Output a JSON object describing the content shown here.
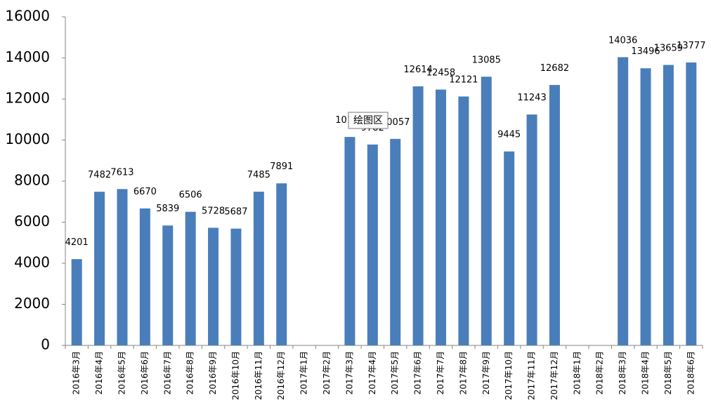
{
  "chart_data": {
    "type": "bar",
    "categories": [
      "2016年3月",
      "2016年4月",
      "2016年5月",
      "2016年6月",
      "2016年7月",
      "2016年8月",
      "2016年9月",
      "2016年10月",
      "2016年11月",
      "2016年12月",
      "2017年1月",
      "2017年2月",
      "2017年3月",
      "2017年4月",
      "2017年5月",
      "2017年6月",
      "2017年7月",
      "2017年8月",
      "2017年9月",
      "2017年10月",
      "2017年11月",
      "2017年12月",
      "2018年1月",
      "2018年2月",
      "2018年3月",
      "2018年4月",
      "2018年5月",
      "2018年6月"
    ],
    "values": [
      4201,
      7482,
      7613,
      6670,
      5839,
      6506,
      5728,
      5687,
      7485,
      7891,
      null,
      null,
      10150,
      9782,
      10057,
      12614,
      12458,
      12121,
      13085,
      9445,
      11243,
      12682,
      null,
      null,
      14036,
      13496,
      13659,
      13777
    ],
    "color": "#4a7ebb",
    "ylim": [
      0,
      16000
    ],
    "yticks": [
      0,
      2000,
      4000,
      6000,
      8000,
      10000,
      12000,
      14000,
      16000
    ],
    "tooltip": "绘图区"
  }
}
